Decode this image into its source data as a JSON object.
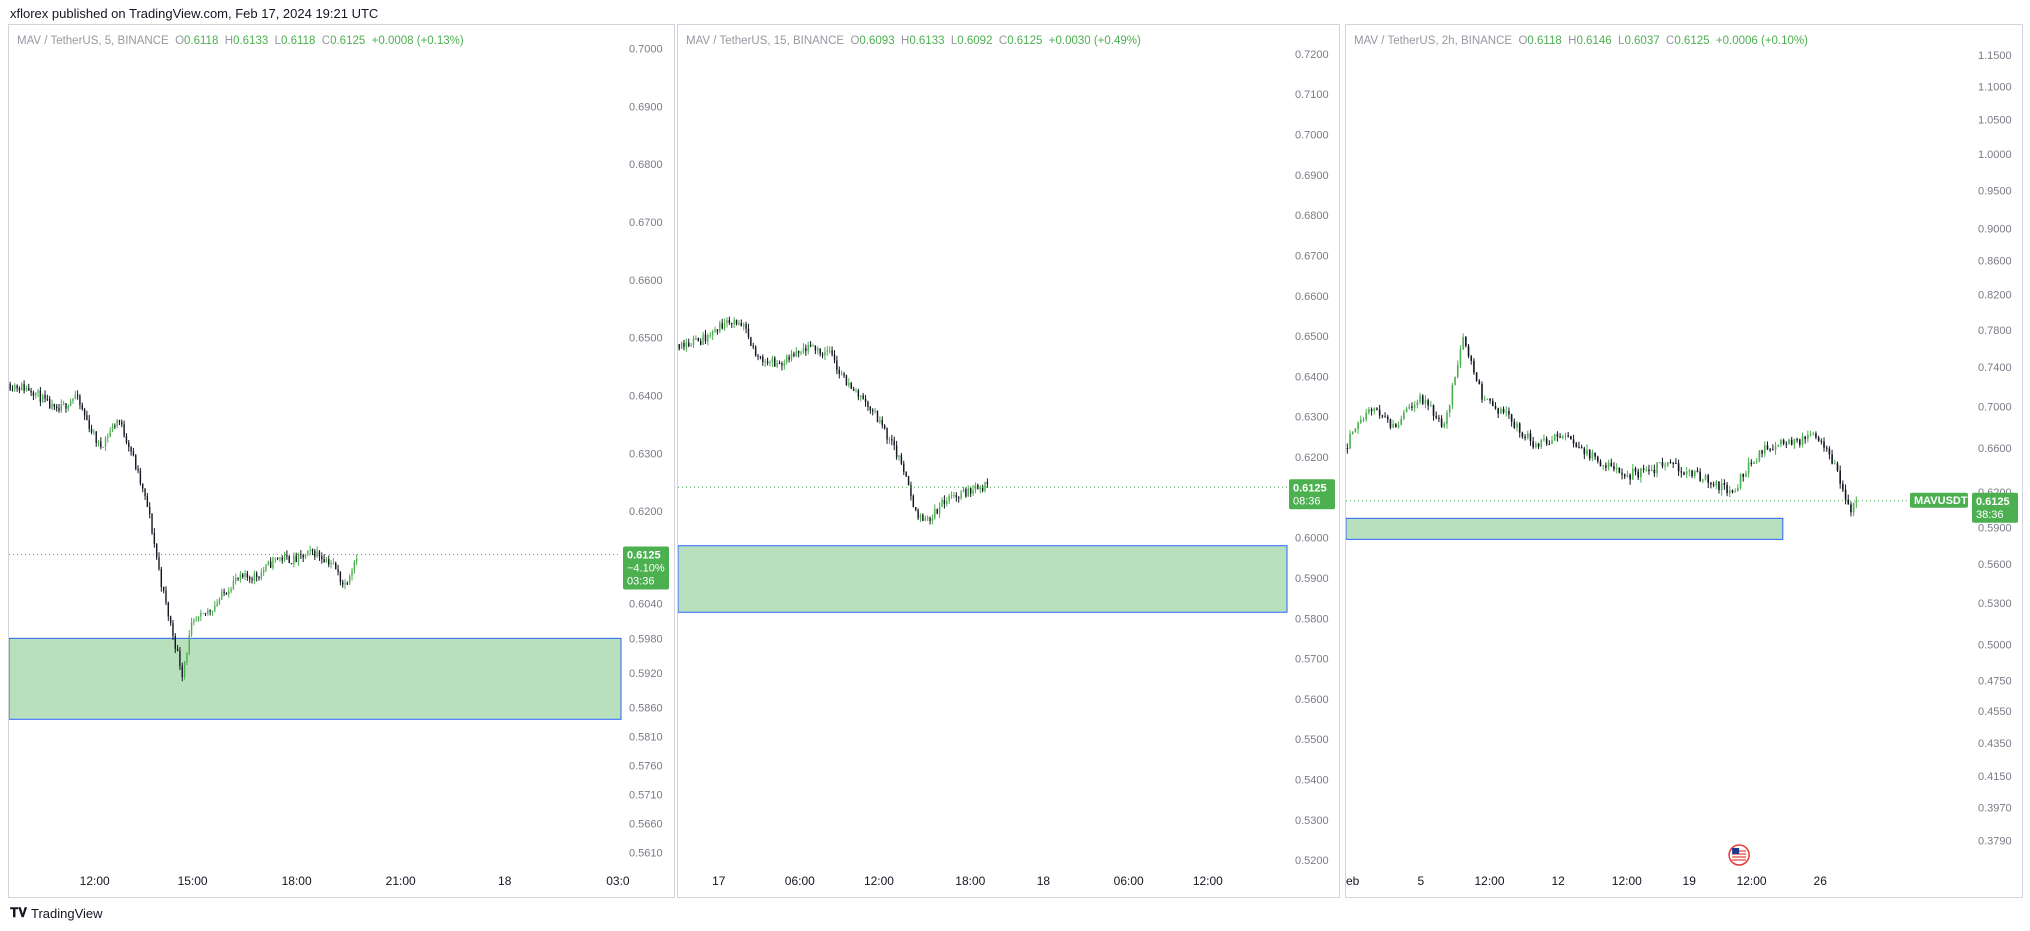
{
  "header": {
    "text": "xflorex published on TradingView.com, Feb 17, 2024 19:21 UTC"
  },
  "footer": {
    "logo_icon": "tradingview-logo-icon",
    "brand": "TradingView"
  },
  "colors": {
    "up": "#4caf50",
    "down": "#131722",
    "zone_fill": "#b9e0bd",
    "zone_border": "#2962ff",
    "price_line": "#4caf50",
    "axis_text": "#787b86",
    "label_bg": "#4caf50"
  },
  "panes": [
    {
      "legend": {
        "symbol": "MAV / TetherUS, 5, BINANCE",
        "o": "0.6118",
        "h": "0.6133",
        "l": "0.6118",
        "c": "0.6125",
        "chg": "+0.0008 (+0.13%)"
      },
      "price_label": [
        "0.6125",
        "−4.10%",
        "03:36"
      ]
    },
    {
      "legend": {
        "symbol": "MAV / TetherUS, 15, BINANCE",
        "o": "0.6093",
        "h": "0.6133",
        "l": "0.6092",
        "c": "0.6125",
        "chg": "+0.0030 (+0.49%)"
      },
      "price_label": [
        "0.6125",
        "08:36"
      ]
    },
    {
      "legend": {
        "symbol": "MAV / TetherUS, 2h, BINANCE",
        "o": "0.6118",
        "h": "0.6146",
        "l": "0.6037",
        "c": "0.6125",
        "chg": "+0.0006 (+0.10%)"
      },
      "price_label": [
        "0.6125",
        "38:36"
      ],
      "symbol_tag": "MAVUSDT",
      "flag_icon": "us-flag-icon"
    }
  ],
  "chart_data": [
    {
      "type": "candlestick",
      "title": "MAV / TetherUS, 5, BINANCE",
      "yscale": "linear",
      "ylim": [
        0.5588,
        0.702
      ],
      "y_ticks": [
        "0.7000",
        "0.6900",
        "0.6800",
        "0.6700",
        "0.6600",
        "0.6500",
        "0.6400",
        "0.6300",
        "0.6200",
        "0.6100",
        "0.6040",
        "0.5980",
        "0.5920",
        "0.5860",
        "0.5810",
        "0.5760",
        "0.5710",
        "0.5660",
        "0.5610"
      ],
      "x_ticks": [
        "12:00",
        "15:00",
        "18:00",
        "21:00",
        "18",
        "03:0"
      ],
      "last_price": 0.6125,
      "zone": [
        0.584,
        0.598
      ],
      "price_path": [
        [
          0.0,
          0.642
        ],
        [
          0.04,
          0.641
        ],
        [
          0.08,
          0.637
        ],
        [
          0.11,
          0.64
        ],
        [
          0.15,
          0.631
        ],
        [
          0.18,
          0.636
        ],
        [
          0.2,
          0.631
        ],
        [
          0.23,
          0.62
        ],
        [
          0.25,
          0.608
        ],
        [
          0.26,
          0.603
        ],
        [
          0.285,
          0.592
        ],
        [
          0.3,
          0.6
        ],
        [
          0.34,
          0.604
        ],
        [
          0.37,
          0.608
        ],
        [
          0.41,
          0.609
        ],
        [
          0.44,
          0.612
        ],
        [
          0.47,
          0.6115
        ],
        [
          0.5,
          0.613
        ],
        [
          0.53,
          0.611
        ],
        [
          0.55,
          0.607
        ],
        [
          0.57,
          0.6125
        ]
      ],
      "price_path_note": "x is fraction of visible time span"
    },
    {
      "type": "candlestick",
      "title": "MAV / TetherUS, 15, BINANCE",
      "yscale": "linear",
      "ylim": [
        0.5188,
        0.7242
      ],
      "y_ticks": [
        "0.7200",
        "0.7100",
        "0.7000",
        "0.6900",
        "0.6800",
        "0.6700",
        "0.6600",
        "0.6500",
        "0.6400",
        "0.6300",
        "0.6200",
        "0.6100",
        "0.6000",
        "0.5900",
        "0.5800",
        "0.5700",
        "0.5600",
        "0.5500",
        "0.5400",
        "0.5300",
        "0.5200"
      ],
      "x_ticks": [
        "17",
        "06:00",
        "12:00",
        "18:00",
        "18",
        "06:00",
        "12:00"
      ],
      "last_price": 0.6125,
      "zone": [
        0.5815,
        0.598
      ],
      "price_path": [
        [
          0.0,
          0.648
        ],
        [
          0.04,
          0.649
        ],
        [
          0.09,
          0.654
        ],
        [
          0.11,
          0.652
        ],
        [
          0.13,
          0.645
        ],
        [
          0.17,
          0.643
        ],
        [
          0.22,
          0.647
        ],
        [
          0.25,
          0.646
        ],
        [
          0.28,
          0.638
        ],
        [
          0.31,
          0.634
        ],
        [
          0.34,
          0.627
        ],
        [
          0.37,
          0.618
        ],
        [
          0.39,
          0.607
        ],
        [
          0.41,
          0.604
        ],
        [
          0.44,
          0.609
        ],
        [
          0.47,
          0.611
        ],
        [
          0.5,
          0.613
        ],
        [
          0.51,
          0.6125
        ]
      ],
      "price_path_note": "x is fraction of visible time span"
    },
    {
      "type": "candlestick",
      "title": "MAV / TetherUS, 2h, BINANCE",
      "yscale": "log",
      "ylim": [
        0.366,
        1.18
      ],
      "y_ticks": [
        "1.1500",
        "1.1000",
        "1.0500",
        "1.0000",
        "0.9500",
        "0.9000",
        "0.8600",
        "0.8200",
        "0.7800",
        "0.7400",
        "0.7000",
        "0.6600",
        "0.6200",
        "0.5900",
        "0.5600",
        "0.5300",
        "0.5000",
        "0.4750",
        "0.4550",
        "0.4350",
        "0.4150",
        "0.3970",
        "0.3790"
      ],
      "x_ticks": [
        "eb",
        "5",
        "12:00",
        "12",
        "12:00",
        "19",
        "12:00",
        "26"
      ],
      "last_price": 0.6125,
      "zone": [
        0.58,
        0.5975
      ],
      "price_path": [
        [
          0.0,
          0.66
        ],
        [
          0.04,
          0.7
        ],
        [
          0.08,
          0.68
        ],
        [
          0.12,
          0.71
        ],
        [
          0.16,
          0.68
        ],
        [
          0.19,
          0.77
        ],
        [
          0.22,
          0.71
        ],
        [
          0.26,
          0.69
        ],
        [
          0.3,
          0.665
        ],
        [
          0.35,
          0.67
        ],
        [
          0.4,
          0.65
        ],
        [
          0.45,
          0.635
        ],
        [
          0.52,
          0.645
        ],
        [
          0.58,
          0.63
        ],
        [
          0.62,
          0.62
        ],
        [
          0.67,
          0.66
        ],
        [
          0.72,
          0.665
        ],
        [
          0.76,
          0.67
        ],
        [
          0.79,
          0.64
        ],
        [
          0.81,
          0.6
        ],
        [
          0.82,
          0.6125
        ]
      ],
      "price_path_note": "x is fraction of visible time span"
    }
  ]
}
